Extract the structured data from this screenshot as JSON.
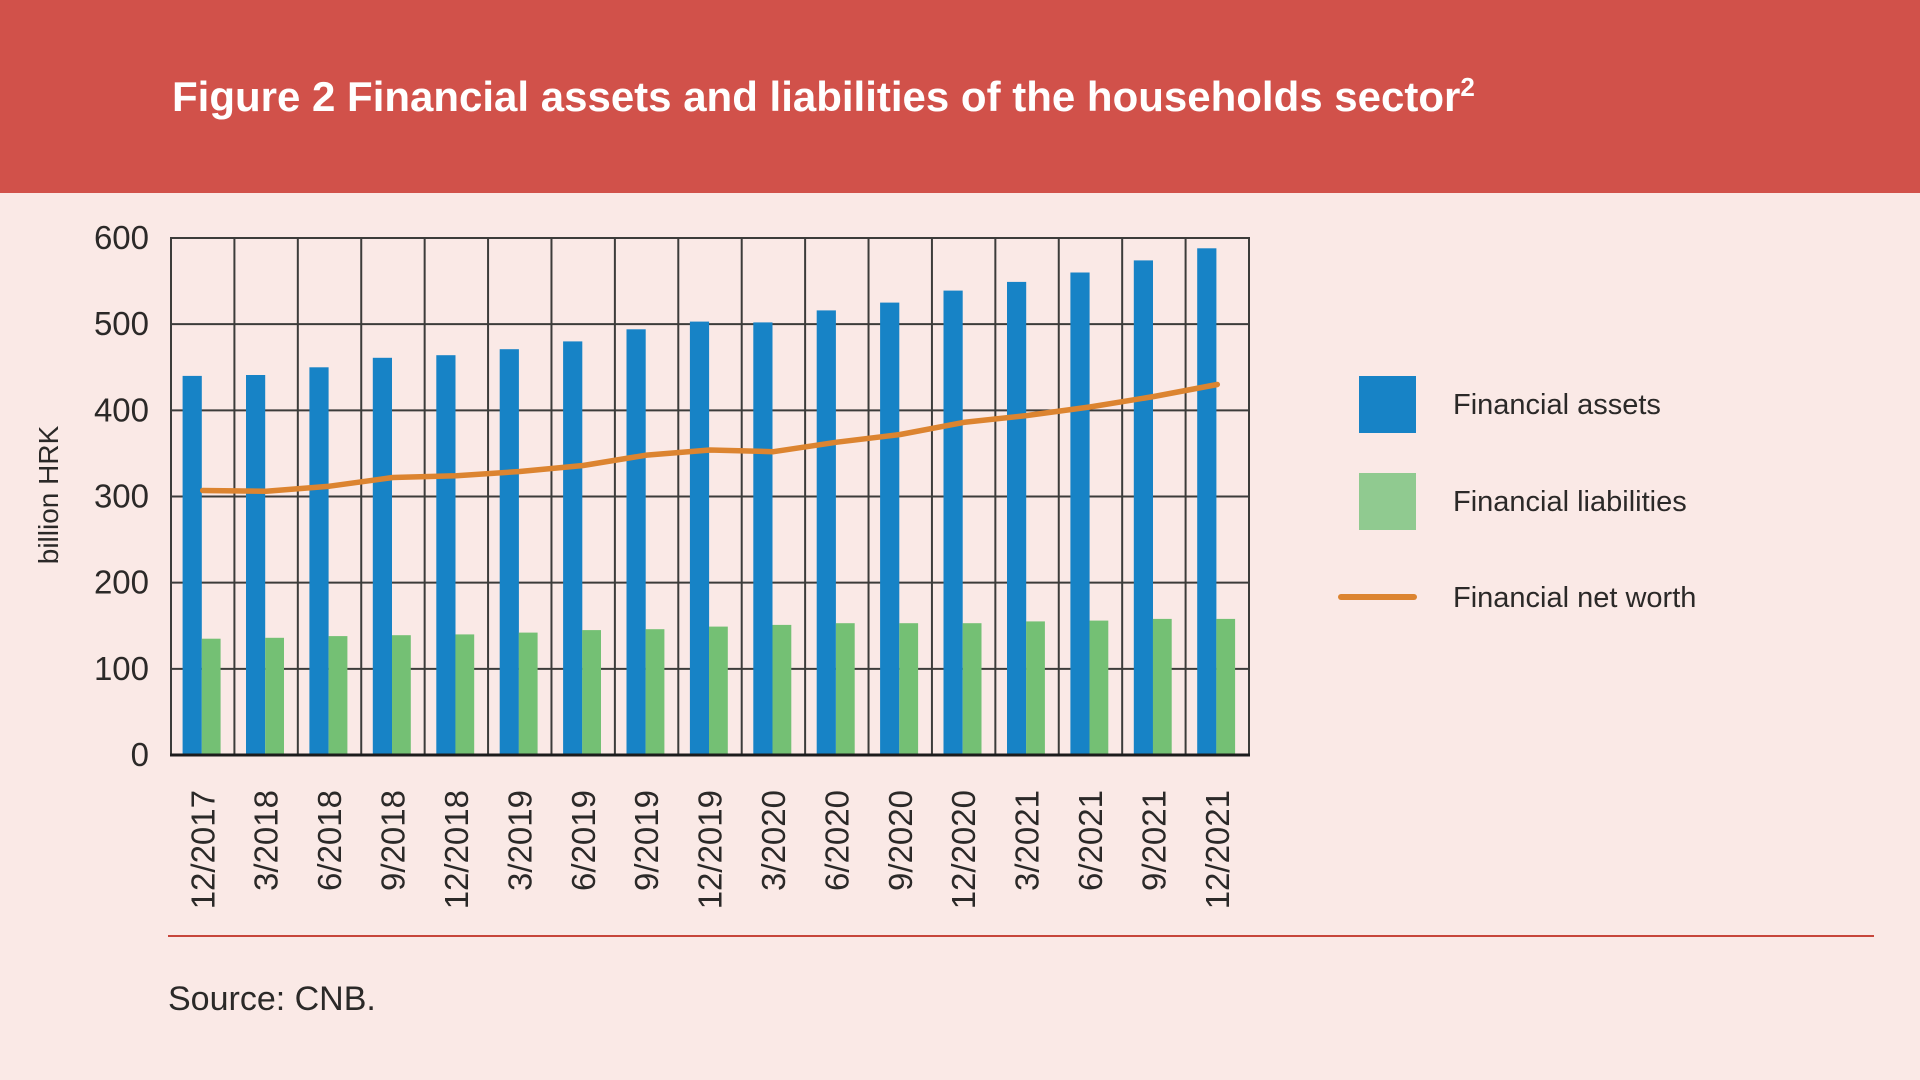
{
  "title": {
    "text": "Figure 2 Financial assets and liabilities of the households sector",
    "superscript": "2"
  },
  "source_note": "Source: CNB.",
  "legend": [
    {
      "label": "Financial assets",
      "swatch": "square",
      "color": "#1783c6"
    },
    {
      "label": "Financial liabilities",
      "swatch": "square",
      "color": "#90ca90"
    },
    {
      "label": "Financial net worth",
      "swatch": "line",
      "color": "#dc8430"
    }
  ],
  "colors": {
    "header_band": "#d1514a",
    "background": "#fae9e6",
    "assets_bar": "#1783c6",
    "liabilities_bar": "#74c074",
    "net_worth_line": "#dc8430",
    "grid": "#3c3c3a",
    "axis": "#1c1c1c",
    "text": "#2b2928",
    "divider": "#c7463b"
  },
  "chart_data": {
    "type": "bar",
    "title": "Financial assets and liabilities of the households sector",
    "ylabel": "billion HRK",
    "xlabel": "",
    "ylim": [
      0,
      600
    ],
    "y_ticks": [
      0,
      100,
      200,
      300,
      400,
      500,
      600
    ],
    "grid": true,
    "legend_position": "right",
    "x_label_rotation": 90,
    "categories": [
      "12/2017",
      "3/2018",
      "6/2018",
      "9/2018",
      "12/2018",
      "3/2019",
      "6/2019",
      "9/2019",
      "12/2019",
      "3/2020",
      "6/2020",
      "9/2020",
      "12/2020",
      "3/2021",
      "6/2021",
      "9/2021",
      "12/2021"
    ],
    "series": [
      {
        "name": "Financial assets",
        "type": "bar",
        "color": "#1783c6",
        "values": [
          440,
          441,
          450,
          461,
          464,
          471,
          480,
          494,
          503,
          502,
          516,
          525,
          539,
          549,
          560,
          574,
          588
        ]
      },
      {
        "name": "Financial liabilities",
        "type": "bar",
        "color": "#74c074",
        "values": [
          135,
          136,
          138,
          139,
          140,
          142,
          145,
          146,
          149,
          151,
          153,
          153,
          153,
          155,
          156,
          158,
          158
        ]
      },
      {
        "name": "Financial net worth",
        "type": "line",
        "color": "#dc8430",
        "values": [
          307,
          306,
          312,
          322,
          324,
          329,
          336,
          348,
          354,
          352,
          363,
          372,
          386,
          394,
          404,
          416,
          430
        ]
      }
    ]
  }
}
